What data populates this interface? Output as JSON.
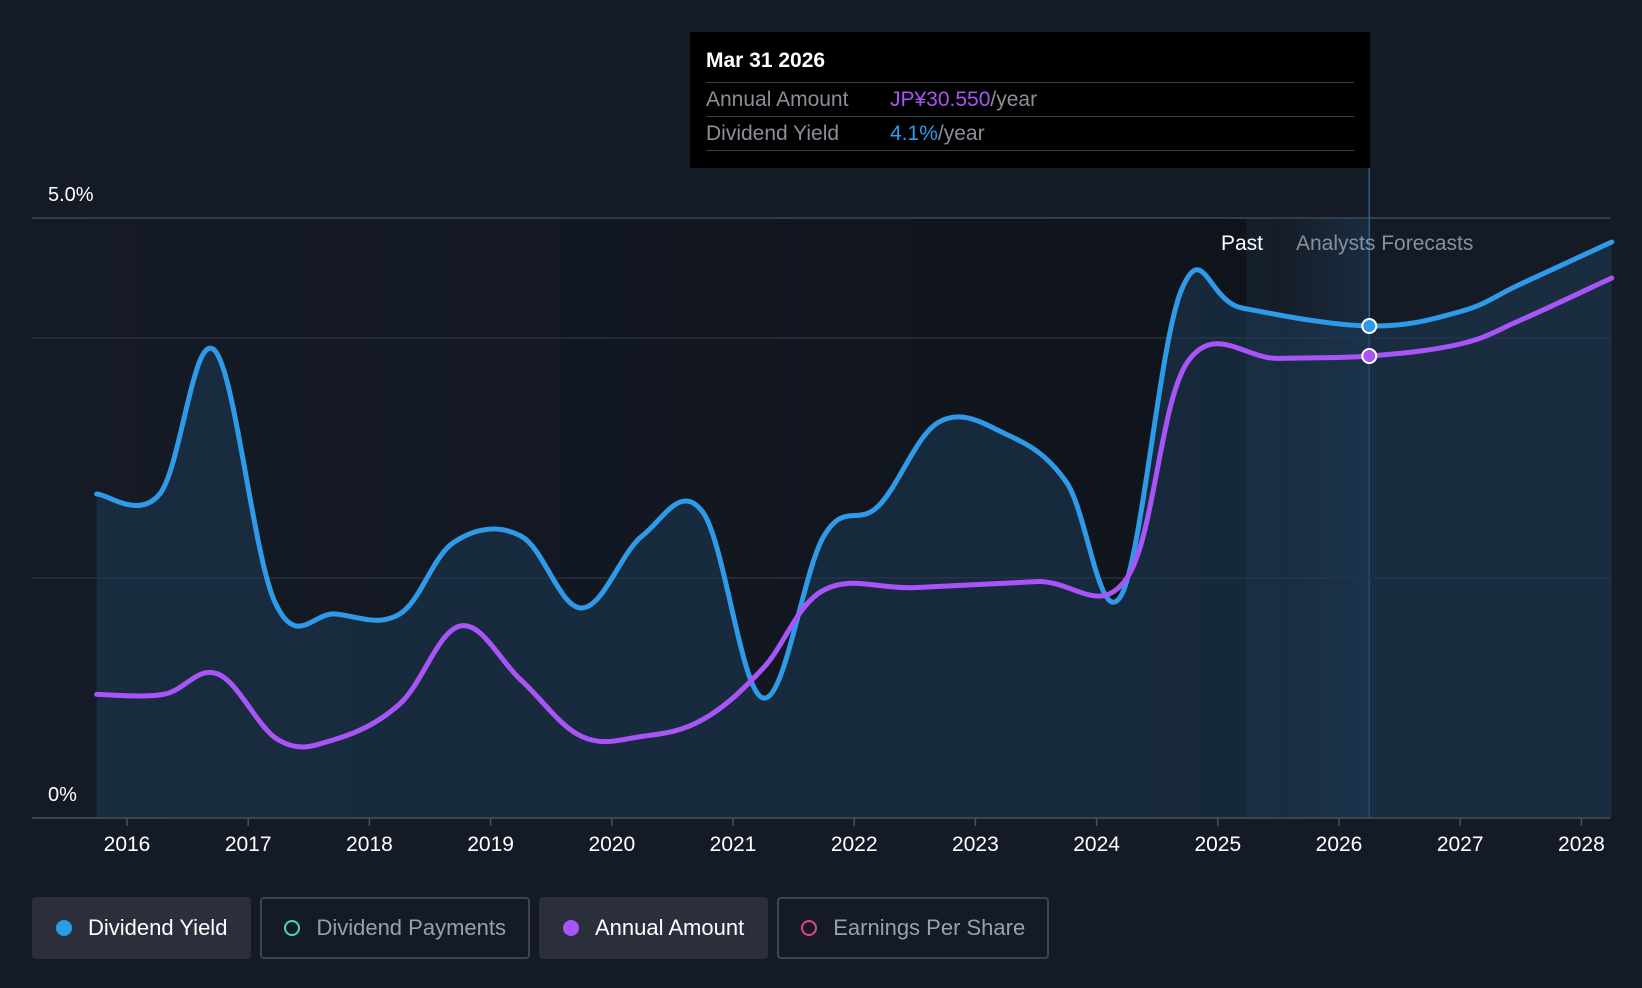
{
  "tooltip": {
    "date": "Mar 31 2026",
    "rows": [
      {
        "label": "Annual Amount",
        "value": "JP¥30.550",
        "unit": "/year"
      },
      {
        "label": "Dividend Yield",
        "value": "4.1%",
        "unit": "/year"
      }
    ]
  },
  "regions": {
    "past_label": "Past",
    "forecast_label": "Analysts Forecasts"
  },
  "legend": [
    {
      "label": "Dividend Yield",
      "color": "#2f9be8",
      "active": true
    },
    {
      "label": "Dividend Payments",
      "color": "#4fd1c5",
      "active": false
    },
    {
      "label": "Annual Amount",
      "color": "#a855f7",
      "active": true
    },
    {
      "label": "Earnings Per Share",
      "color": "#e0457b",
      "active": false
    }
  ],
  "chart_data": {
    "type": "line",
    "title": "",
    "xlabel": "",
    "ylabel": "",
    "x_ticks": [
      "2016",
      "2017",
      "2018",
      "2019",
      "2020",
      "2021",
      "2022",
      "2023",
      "2024",
      "2025",
      "2026",
      "2027",
      "2028"
    ],
    "y_ticks": [
      "0%",
      "5.0%"
    ],
    "ylim": [
      0,
      5.0
    ],
    "grid": true,
    "past_forecast_divider": 2025.5,
    "series": [
      {
        "name": "Dividend Yield",
        "color": "#2f9be8",
        "unit": "%",
        "points": [
          [
            2015.75,
            2.7
          ],
          [
            2016.27,
            2.7
          ],
          [
            2016.72,
            3.9
          ],
          [
            2017.22,
            1.8
          ],
          [
            2017.72,
            1.7
          ],
          [
            2018.25,
            1.7
          ],
          [
            2018.7,
            2.3
          ],
          [
            2019.25,
            2.35
          ],
          [
            2019.75,
            1.75
          ],
          [
            2020.25,
            2.35
          ],
          [
            2020.75,
            2.55
          ],
          [
            2021.25,
            1.0
          ],
          [
            2021.75,
            2.35
          ],
          [
            2022.2,
            2.6
          ],
          [
            2022.7,
            3.3
          ],
          [
            2023.25,
            3.2
          ],
          [
            2023.75,
            2.8
          ],
          [
            2024.2,
            1.85
          ],
          [
            2024.7,
            4.4
          ],
          [
            2025.2,
            4.25
          ],
          [
            2026.25,
            4.1
          ],
          [
            2027.0,
            4.22
          ],
          [
            2027.5,
            4.45
          ],
          [
            2028.25,
            4.8
          ]
        ]
      },
      {
        "name": "Annual Amount",
        "color": "#a855f7",
        "unit": "%",
        "points": [
          [
            2015.75,
            1.03
          ],
          [
            2016.3,
            1.03
          ],
          [
            2016.75,
            1.2
          ],
          [
            2017.25,
            0.65
          ],
          [
            2017.7,
            0.65
          ],
          [
            2018.25,
            0.95
          ],
          [
            2018.75,
            1.6
          ],
          [
            2019.25,
            1.15
          ],
          [
            2019.75,
            0.68
          ],
          [
            2020.25,
            0.68
          ],
          [
            2020.75,
            0.82
          ],
          [
            2021.25,
            1.25
          ],
          [
            2021.75,
            1.9
          ],
          [
            2022.5,
            1.92
          ],
          [
            2023.5,
            1.97
          ],
          [
            2024.25,
            2.0
          ],
          [
            2024.75,
            3.8
          ],
          [
            2025.5,
            3.83
          ],
          [
            2026.25,
            3.85
          ],
          [
            2027.0,
            3.95
          ],
          [
            2027.5,
            4.15
          ],
          [
            2028.25,
            4.5
          ]
        ]
      }
    ],
    "highlight": {
      "x": 2026.25,
      "yield_y": 4.1,
      "amount_y": 3.85
    }
  }
}
